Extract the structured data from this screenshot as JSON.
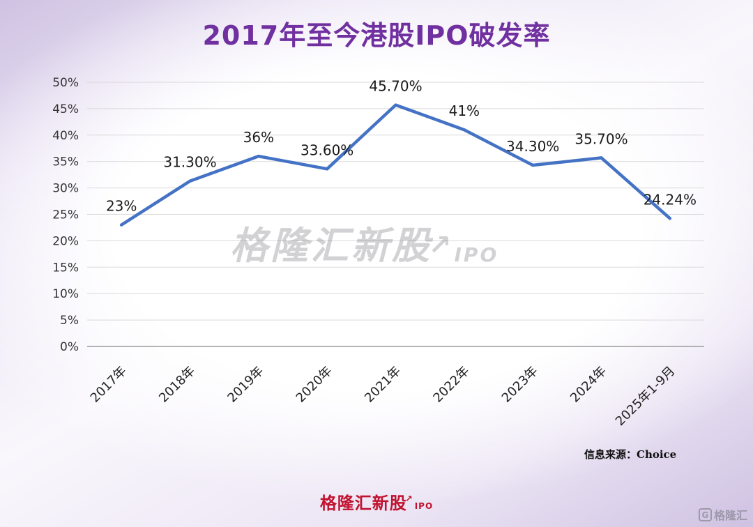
{
  "title": "2017年至今港股IPO破发率",
  "chart_data": {
    "type": "line",
    "title": "2017年至今港股IPO破发率",
    "categories": [
      "2017年",
      "2018年",
      "2019年",
      "2020年",
      "2021年",
      "2022年",
      "2023年",
      "2024年",
      "2025年1-9月"
    ],
    "values": [
      23,
      31.3,
      36,
      33.6,
      45.7,
      41,
      34.3,
      35.7,
      24.24
    ],
    "data_labels": [
      "23%",
      "31.30%",
      "36%",
      "33.60%",
      "45.70%",
      "41%",
      "34.30%",
      "35.70%",
      "24.24%"
    ],
    "ylim": [
      0,
      50
    ],
    "ytick_step": 5,
    "ytick_labels": [
      "0%",
      "5%",
      "10%",
      "15%",
      "20%",
      "25%",
      "30%",
      "35%",
      "40%",
      "45%",
      "50%"
    ],
    "grid": true,
    "legend_position": "none",
    "line_color": "#4472C4",
    "gridline_color": "#d9d9d9",
    "axis_color": "#9a9a9a"
  },
  "watermark": {
    "text": "格隆汇新股",
    "arrow": "↗",
    "suffix": "IPO"
  },
  "source": "信息来源：Choice",
  "footer_logo": {
    "text": "格隆汇新股",
    "arrow": "↗",
    "suffix": "IPO"
  },
  "corner_watermark": {
    "g": "G",
    "text": "格隆汇"
  },
  "colors": {
    "title": "#7030A0",
    "line": "#4472C4",
    "logo_red": "#C1122F"
  }
}
